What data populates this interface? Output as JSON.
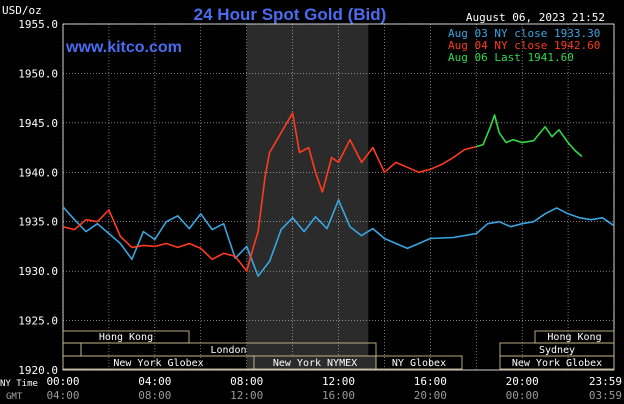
{
  "header": {
    "units": "USD/oz",
    "title": "24 Hour Spot Gold (Bid)",
    "datetime": "August 06, 2023 21:52",
    "website": "www.kitco.com"
  },
  "legend": [
    {
      "label": "Aug 03 NY close 1933.30",
      "color": "#39a6e0"
    },
    {
      "label": "Aug 04 NY close 1942.60",
      "color": "#ff3b1f"
    },
    {
      "label": "Aug 06 Last 1941.60",
      "color": "#2fd94a"
    }
  ],
  "axis": {
    "y_ticks": [
      "1955.0",
      "1950.0",
      "1945.0",
      "1940.0",
      "1935.0",
      "1930.0",
      "1925.0",
      "1920.0"
    ],
    "ny_time_label": "NY Time",
    "gmt_label": "GMT",
    "ny_ticks": [
      "00:00",
      "04:00",
      "08:00",
      "12:00",
      "16:00",
      "20:00",
      "23:59"
    ],
    "gmt_ticks": [
      "04:00",
      "08:00",
      "12:00",
      "16:00",
      "20:00",
      "00:00",
      "03:59"
    ]
  },
  "sessions": {
    "hong_kong_left": "Hong Kong",
    "hong_kong_right": "Hong Kong",
    "london": "London",
    "sydney": "Sydney",
    "ny_globex_left": "New York Globex",
    "ny_nymex": "New York NYMEX",
    "ny_globex_mid": "NY Globex",
    "ny_globex_right": "New York Globex"
  },
  "colors": {
    "background": "#000000",
    "grid": "#ffffff",
    "title": "#4a6cf0",
    "shade": "#2b2b2b",
    "session_box": "#c8b98a",
    "blue_line": "#39a6e0",
    "red_line": "#ff3b1f",
    "green_line": "#2fd94a"
  },
  "chart_data": {
    "type": "line",
    "title": "24 Hour Spot Gold (Bid)",
    "ylabel": "USD/oz",
    "xlabel": "NY Time",
    "ylim": [
      1920,
      1955
    ],
    "x_unit": "NY hours (00:00-24:00)",
    "shaded_window": [
      8.0,
      13.3
    ],
    "series": [
      {
        "name": "Aug 03 NY close 1933.30",
        "color": "#39a6e0",
        "points": [
          [
            0,
            1936.5
          ],
          [
            0.5,
            1935.2
          ],
          [
            1,
            1934.0
          ],
          [
            1.5,
            1934.8
          ],
          [
            2,
            1933.8
          ],
          [
            2.5,
            1932.8
          ],
          [
            3,
            1931.2
          ],
          [
            3.5,
            1934.0
          ],
          [
            4,
            1933.2
          ],
          [
            4.5,
            1935.0
          ],
          [
            5,
            1935.6
          ],
          [
            5.5,
            1934.3
          ],
          [
            6,
            1935.8
          ],
          [
            6.5,
            1934.2
          ],
          [
            7,
            1934.8
          ],
          [
            7.5,
            1931.3
          ],
          [
            8,
            1932.5
          ],
          [
            8.5,
            1929.5
          ],
          [
            9,
            1931.0
          ],
          [
            9.5,
            1934.2
          ],
          [
            10,
            1935.4
          ],
          [
            10.5,
            1934.0
          ],
          [
            11,
            1935.5
          ],
          [
            11.5,
            1934.3
          ],
          [
            12,
            1937.2
          ],
          [
            12.5,
            1934.5
          ],
          [
            13,
            1933.6
          ],
          [
            13.5,
            1934.3
          ],
          [
            14,
            1933.3
          ],
          [
            14.5,
            1932.8
          ],
          [
            15,
            1932.3
          ],
          [
            15.5,
            1932.8
          ],
          [
            16,
            1933.3
          ],
          [
            17,
            1933.4
          ],
          [
            18,
            1933.8
          ],
          [
            18.5,
            1934.8
          ],
          [
            19,
            1935.0
          ],
          [
            19.5,
            1934.5
          ],
          [
            20,
            1934.8
          ],
          [
            20.5,
            1935.0
          ],
          [
            21,
            1935.8
          ],
          [
            21.5,
            1936.4
          ],
          [
            22,
            1935.8
          ],
          [
            22.5,
            1935.4
          ],
          [
            23,
            1935.2
          ],
          [
            23.5,
            1935.4
          ],
          [
            24,
            1934.6
          ]
        ]
      },
      {
        "name": "Aug 04 NY close 1942.60",
        "color": "#ff3b1f",
        "points": [
          [
            0,
            1934.5
          ],
          [
            0.5,
            1934.2
          ],
          [
            1,
            1935.2
          ],
          [
            1.5,
            1935.0
          ],
          [
            2,
            1936.2
          ],
          [
            2.5,
            1933.5
          ],
          [
            3,
            1932.4
          ],
          [
            3.5,
            1932.6
          ],
          [
            4,
            1932.5
          ],
          [
            4.5,
            1932.8
          ],
          [
            5,
            1932.4
          ],
          [
            5.5,
            1932.8
          ],
          [
            6,
            1932.3
          ],
          [
            6.5,
            1931.2
          ],
          [
            7,
            1931.8
          ],
          [
            7.5,
            1931.5
          ],
          [
            8,
            1930.0
          ],
          [
            8.3,
            1932.5
          ],
          [
            8.5,
            1934.0
          ],
          [
            8.8,
            1939.5
          ],
          [
            9,
            1942.0
          ],
          [
            9.5,
            1944.0
          ],
          [
            10,
            1946.0
          ],
          [
            10.3,
            1942.0
          ],
          [
            10.7,
            1942.5
          ],
          [
            11,
            1940.0
          ],
          [
            11.3,
            1938.0
          ],
          [
            11.7,
            1941.5
          ],
          [
            12,
            1941.0
          ],
          [
            12.5,
            1943.3
          ],
          [
            13,
            1941.0
          ],
          [
            13.5,
            1942.5
          ],
          [
            14,
            1940.0
          ],
          [
            14.5,
            1941.0
          ],
          [
            15,
            1940.5
          ],
          [
            15.5,
            1940.0
          ],
          [
            16,
            1940.3
          ],
          [
            16.5,
            1940.8
          ],
          [
            17,
            1941.5
          ],
          [
            17.5,
            1942.3
          ],
          [
            18,
            1942.6
          ]
        ]
      },
      {
        "name": "Aug 06 Last 1941.60",
        "color": "#2fd94a",
        "points": [
          [
            18,
            1942.6
          ],
          [
            18.3,
            1942.8
          ],
          [
            18.6,
            1944.5
          ],
          [
            18.8,
            1945.8
          ],
          [
            19,
            1944.0
          ],
          [
            19.3,
            1943.0
          ],
          [
            19.6,
            1943.3
          ],
          [
            20,
            1943.0
          ],
          [
            20.5,
            1943.2
          ],
          [
            21,
            1944.6
          ],
          [
            21.3,
            1943.6
          ],
          [
            21.6,
            1944.3
          ],
          [
            22,
            1943.0
          ],
          [
            22.3,
            1942.2
          ],
          [
            22.6,
            1941.6
          ]
        ]
      }
    ]
  }
}
